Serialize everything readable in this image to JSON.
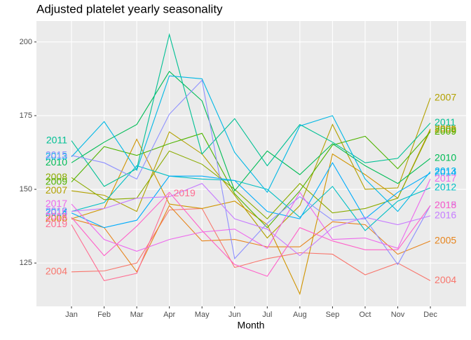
{
  "chart_data": {
    "type": "line",
    "title": "Adjusted platelet yearly seasonality",
    "x_label": "Month",
    "categories": [
      "Jan",
      "Feb",
      "Mar",
      "Apr",
      "May",
      "Jun",
      "Jul",
      "Aug",
      "Sep",
      "Oct",
      "Nov",
      "Dec"
    ],
    "ylim": [
      110.3,
      207.1
    ],
    "yticks": [
      125,
      150,
      175,
      200
    ],
    "grid": true,
    "series": [
      {
        "name": "2004",
        "color": "#F8766D",
        "values": [
          122,
          122.3,
          125,
          143,
          143.5,
          123.5,
          126.5,
          128.5,
          128,
          121,
          125,
          119
        ]
      },
      {
        "name": "2005",
        "color": "#E7851E",
        "values": [
          140,
          137,
          122,
          144.5,
          132.5,
          133,
          130.5,
          130.5,
          139,
          138,
          128,
          132.5
        ]
      },
      {
        "name": "2006",
        "color": "#D09400",
        "values": [
          140,
          143.5,
          167,
          145,
          143.5,
          146,
          138,
          114.5,
          162,
          155,
          147,
          170.5
        ]
      },
      {
        "name": "2007",
        "color": "#B2A100",
        "values": [
          149.5,
          148,
          142.5,
          169.5,
          162,
          148,
          133.5,
          144.5,
          172,
          150,
          150.5,
          181
        ]
      },
      {
        "name": "2008",
        "color": "#8BAB00",
        "values": [
          154,
          146.5,
          147,
          163,
          158.5,
          150,
          140,
          152,
          142,
          143.5,
          147,
          170
        ]
      },
      {
        "name": "2009",
        "color": "#50B400",
        "values": [
          152.5,
          164.5,
          161.5,
          165.5,
          169,
          148.5,
          137,
          149.5,
          165,
          168,
          157,
          169.5
        ]
      },
      {
        "name": "2010",
        "color": "#00BC56",
        "values": [
          159,
          166,
          172,
          190,
          180,
          149.5,
          163,
          155,
          165.5,
          158,
          152,
          160.5
        ]
      },
      {
        "name": "2011",
        "color": "#00C094",
        "values": [
          166.5,
          151,
          157,
          202.5,
          162,
          174,
          158,
          172,
          166,
          159,
          160.5,
          172.5
        ]
      },
      {
        "name": "2012",
        "color": "#00BFC4",
        "values": [
          142.5,
          145.5,
          158,
          154.5,
          153.5,
          153,
          150,
          140.5,
          151,
          136,
          146,
          150.5
        ]
      },
      {
        "name": "2013",
        "color": "#00B8E5",
        "values": [
          161,
          173,
          156.5,
          188.5,
          187.5,
          162.5,
          149,
          171.5,
          175,
          153.5,
          142.5,
          156
        ]
      },
      {
        "name": "2014",
        "color": "#00ACFC",
        "values": [
          142,
          137,
          139.5,
          154.5,
          154.5,
          153,
          142.5,
          140,
          159,
          140,
          149,
          155.5
        ]
      },
      {
        "name": "2015",
        "color": "#8F91FF",
        "values": [
          161.5,
          159,
          153.5,
          175.5,
          187,
          126.5,
          138.5,
          147.5,
          139.5,
          140,
          124.5,
          144.5
        ]
      },
      {
        "name": "2016",
        "color": "#C77CFF",
        "values": [
          142.5,
          143.5,
          147,
          147.5,
          152,
          140,
          136.5,
          127.5,
          137,
          140.5,
          138,
          141
        ]
      },
      {
        "name": "2017",
        "color": "#ED68ED",
        "values": [
          145,
          133,
          129,
          133,
          135.5,
          136.5,
          130,
          149,
          133,
          133.5,
          130,
          153.5
        ]
      },
      {
        "name": "2018",
        "color": "#FF61C9",
        "values": [
          140.5,
          127.5,
          137.5,
          149,
          136,
          124.5,
          120.5,
          137,
          132.5,
          129.5,
          129.5,
          144.5
        ]
      },
      {
        "name": "2019",
        "color": "#FF6C91",
        "values": [
          138,
          119,
          121.5,
          148.5,
          null,
          null,
          null,
          null,
          null,
          null,
          null,
          null
        ]
      }
    ]
  }
}
